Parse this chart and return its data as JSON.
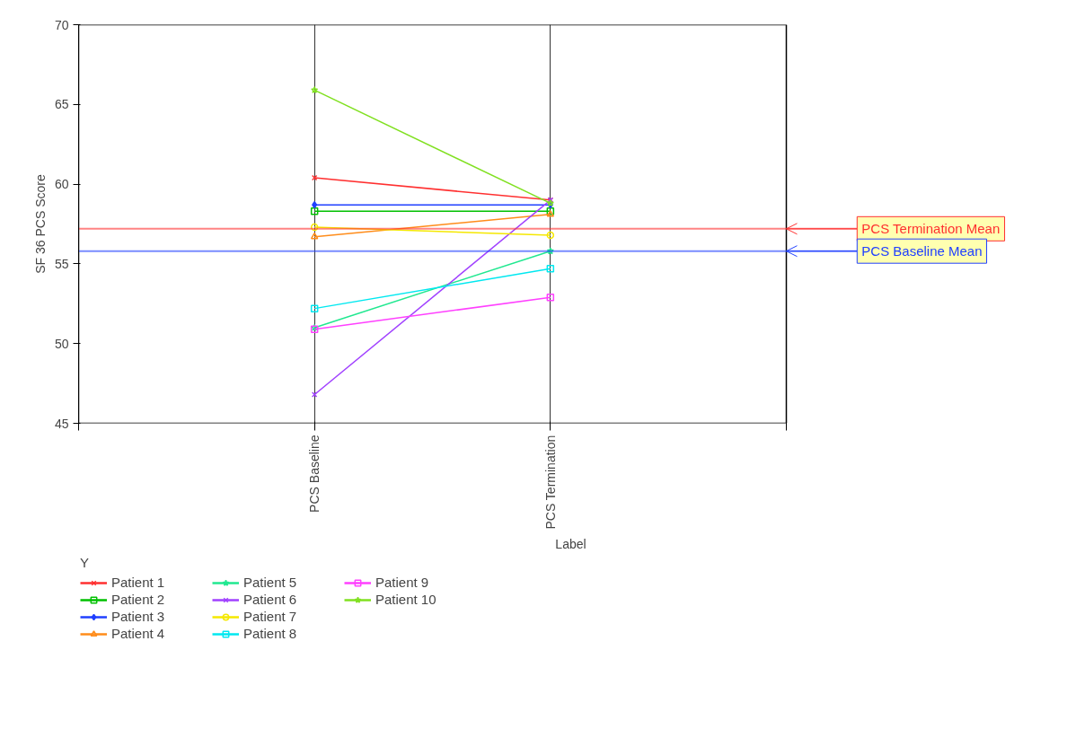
{
  "chart_data": {
    "type": "line",
    "categories": [
      "PCS Baseline",
      "PCS Termination"
    ],
    "xlabel": "Label",
    "ylabel": "SF 36 PCS Score",
    "legend_title": "Y",
    "ylim": [
      45,
      70
    ],
    "yticks": [
      45,
      50,
      55,
      60,
      65,
      70
    ],
    "grid": "x",
    "legend": "bottom",
    "series": [
      {
        "name": "Patient 1",
        "color": "#ff3030",
        "marker": "cross",
        "values": [
          60.4,
          59.0
        ]
      },
      {
        "name": "Patient 2",
        "color": "#00c000",
        "marker": "square",
        "values": [
          58.3,
          58.3
        ]
      },
      {
        "name": "Patient 3",
        "color": "#2040ff",
        "marker": "diamond",
        "values": [
          58.7,
          58.7
        ]
      },
      {
        "name": "Patient 4",
        "color": "#ff8c1a",
        "marker": "triangle",
        "values": [
          56.7,
          58.1
        ]
      },
      {
        "name": "Patient 5",
        "color": "#20e890",
        "marker": "star",
        "values": [
          51.0,
          55.8
        ]
      },
      {
        "name": "Patient 6",
        "color": "#a040ff",
        "marker": "cross",
        "values": [
          46.8,
          59.0
        ]
      },
      {
        "name": "Patient 7",
        "color": "#f5e800",
        "marker": "circle",
        "values": [
          57.3,
          56.8
        ]
      },
      {
        "name": "Patient 8",
        "color": "#00e8f0",
        "marker": "square",
        "values": [
          52.2,
          54.7
        ]
      },
      {
        "name": "Patient 9",
        "color": "#ff40ff",
        "marker": "square",
        "values": [
          50.9,
          52.9
        ]
      },
      {
        "name": "Patient 10",
        "color": "#80e020",
        "marker": "star",
        "values": [
          65.9,
          58.8
        ]
      }
    ],
    "ref_lines": [
      {
        "axis": "y",
        "value": 57.2,
        "label": "PCS Termination Mean",
        "color": "#ff3030"
      },
      {
        "axis": "y",
        "value": 55.8,
        "label": "PCS Baseline Mean",
        "color": "#2040ff"
      }
    ]
  }
}
